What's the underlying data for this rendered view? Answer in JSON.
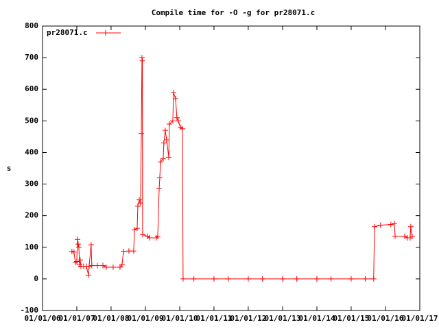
{
  "chart_data": {
    "type": "line",
    "title": "Compile time for -O -g for pr28071.c",
    "y_label": "s",
    "legend": "top-left",
    "x": [
      "2006-11-10",
      "2006-12-02",
      "2006-12-16",
      "2007-01-01",
      "2007-01-08",
      "2007-01-15",
      "2007-01-23",
      "2007-01-30",
      "2007-02-06",
      "2007-02-14",
      "2007-03-15",
      "2007-04-13",
      "2007-05-05",
      "2007-05-12",
      "2007-06-03",
      "2007-06-10",
      "2007-08-08",
      "2007-10-06",
      "2007-11-11",
      "2008-01-23",
      "2008-04-05",
      "2008-04-27",
      "2008-05-12",
      "2008-07-09",
      "2008-08-29",
      "2008-09-06",
      "2008-10-05",
      "2008-10-12",
      "2008-10-27",
      "2008-11-10",
      "2008-11-18",
      "2008-11-25",
      "2008-11-29",
      "2008-12-02",
      "2009-01-23",
      "2009-02-14",
      "2009-04-27",
      "2009-05-12",
      "2009-05-27",
      "2009-06-03",
      "2009-06-10",
      "2009-07-09",
      "2009-07-16",
      "2009-07-31",
      "2009-08-15",
      "2009-09-06",
      "2009-09-13",
      "2009-10-20",
      "2009-10-27",
      "2009-11-18",
      "2009-12-02",
      "2009-12-17",
      "2010-01-08",
      "2010-01-30",
      "2010-02-06",
      "2010-06-01",
      "2011-01-01",
      "2011-06-01",
      "2012-01-01",
      "2012-06-01",
      "2013-01-01",
      "2013-06-01",
      "2014-01-01",
      "2014-06-01",
      "2015-01-01",
      "2015-06-01",
      "2015-08-29",
      "2015-09-06",
      "2015-11-10",
      "2016-02-28",
      "2016-04-05",
      "2016-04-13",
      "2016-07-24",
      "2016-08-22",
      "2016-09-20",
      "2016-09-27",
      "2016-10-12"
    ],
    "series": [
      {
        "name": "pr28071.c",
        "color": "#ff0000",
        "values": [
          87,
          85,
          52,
          55,
          125,
          110,
          100,
          45,
          60,
          40,
          40,
          40,
          12,
          40,
          108,
          42,
          42,
          42,
          37,
          37,
          37,
          45,
          87,
          88,
          88,
          155,
          160,
          230,
          250,
          240,
          460,
          700,
          690,
          140,
          135,
          130,
          130,
          135,
          285,
          320,
          370,
          380,
          430,
          470,
          440,
          385,
          490,
          500,
          590,
          570,
          510,
          500,
          480,
          475,
          0,
          0,
          0,
          0,
          0,
          0,
          0,
          0,
          0,
          0,
          0,
          0,
          0,
          165,
          170,
          172,
          175,
          135,
          135,
          130,
          130,
          165,
          135
        ]
      }
    ],
    "xlim": [
      "2006-01-01",
      "2017-01-01"
    ],
    "xticks": [
      {
        "value": "2006-01-01",
        "label": "01/01/06"
      },
      {
        "value": "2007-01-01",
        "label": "01/01/07"
      },
      {
        "value": "2008-01-01",
        "label": "01/01/08"
      },
      {
        "value": "2009-01-01",
        "label": "01/01/09"
      },
      {
        "value": "2010-01-01",
        "label": "01/01/10"
      },
      {
        "value": "2011-01-01",
        "label": "01/01/11"
      },
      {
        "value": "2012-01-01",
        "label": "01/01/12"
      },
      {
        "value": "2013-01-01",
        "label": "01/01/13"
      },
      {
        "value": "2014-01-01",
        "label": "01/01/14"
      },
      {
        "value": "2015-01-01",
        "label": "01/01/15"
      },
      {
        "value": "2016-01-01",
        "label": "01/01/16"
      },
      {
        "value": "2017-01-01",
        "label": "01/01/17"
      }
    ],
    "ylim": [
      -100,
      800
    ],
    "yticks": [
      -100,
      0,
      100,
      200,
      300,
      400,
      500,
      600,
      700,
      800
    ]
  }
}
